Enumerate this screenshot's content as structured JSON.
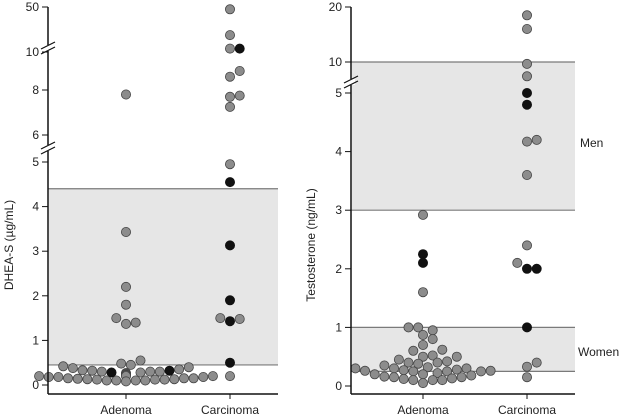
{
  "colors": {
    "band_fill": "#e6e6e6",
    "band_line": "#7a7a7a",
    "axis": "#111111",
    "point_grey": "#8c8c8c",
    "point_black": "#111111",
    "point_stroke": "#444444"
  },
  "chart_data": [
    {
      "type": "scatter",
      "subtype": "dot-strip (beeswarm) with broken y-axis",
      "ylabel": "DHEA-S (µg/mL)",
      "categories": [
        "Adenoma",
        "Carcinoma"
      ],
      "y_ticks": [
        "0",
        "1",
        "2",
        "3",
        "4",
        "5",
        "6",
        "8",
        "10",
        "50"
      ],
      "y_axis_breaks": [
        "between 5 and 6",
        "at 10"
      ],
      "reference_band": {
        "low": 0.45,
        "high": 4.4
      },
      "band_labels": [],
      "points": {
        "Adenoma": {
          "grey": [
            7.8,
            3.43,
            2.2,
            1.8,
            1.5,
            1.37,
            1.4,
            0.55,
            0.48,
            0.45,
            0.42,
            0.4,
            0.38,
            0.35,
            0.33,
            0.32,
            0.3,
            0.3,
            0.3,
            0.28,
            0.27,
            0.25,
            0.25,
            0.23,
            0.22,
            0.2,
            0.2,
            0.2,
            0.18,
            0.18,
            0.18,
            0.15,
            0.15,
            0.15,
            0.14,
            0.13,
            0.13,
            0.12,
            0.12,
            0.12,
            0.1,
            0.1,
            0.1,
            0.1,
            0.08
          ],
          "black": [
            0.32,
            0.28
          ]
        },
        "Carcinoma": {
          "grey": [
            48,
            25,
            13,
            9.0,
            8.7,
            7.7,
            7.75,
            7.25,
            4.95,
            1.48,
            1.5,
            0.2
          ],
          "black": [
            13,
            4.55,
            3.13,
            1.9,
            1.43,
            0.5
          ]
        }
      }
    },
    {
      "type": "scatter",
      "subtype": "dot-strip (beeswarm) with broken y-axis",
      "ylabel": "Testosterone (ng/mL)",
      "categories": [
        "Adenoma",
        "Carcinoma"
      ],
      "y_ticks": [
        "0",
        "1",
        "2",
        "3",
        "4",
        "5",
        "10",
        "20"
      ],
      "y_axis_breaks": [
        "between 5 and 10"
      ],
      "reference_bands": [
        {
          "label": "Men",
          "low": 3.0,
          "high": 10
        },
        {
          "label": "Women",
          "low": 0.25,
          "high": 1.0
        }
      ],
      "points": {
        "Adenoma": {
          "grey": [
            2.92,
            1.6,
            1.0,
            1.0,
            0.95,
            0.87,
            0.8,
            0.7,
            0.62,
            0.6,
            0.52,
            0.5,
            0.5,
            0.45,
            0.42,
            0.4,
            0.4,
            0.38,
            0.35,
            0.32,
            0.3,
            0.3,
            0.3,
            0.28,
            0.27,
            0.26,
            0.26,
            0.25,
            0.25,
            0.25,
            0.22,
            0.2,
            0.2,
            0.18,
            0.16,
            0.15,
            0.15,
            0.13,
            0.12,
            0.1,
            0.1,
            0.1,
            0.05
          ],
          "black": [
            2.25,
            2.1
          ]
        },
        "Carcinoma": {
          "grey": [
            18.5,
            16,
            9.7,
            7.7,
            4.17,
            4.2,
            3.6,
            2.4,
            2.1,
            0.4,
            0.33,
            0.15
          ],
          "black": [
            5.0,
            4.8,
            2.0,
            2.0,
            1.0
          ]
        }
      }
    }
  ]
}
